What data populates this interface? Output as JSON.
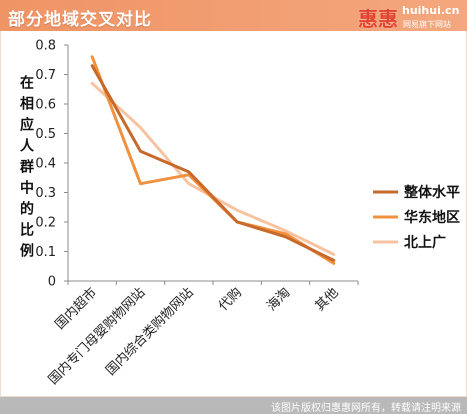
{
  "header": {
    "logo": {
      "brand": "惠惠",
      "site": "huihui.cn",
      "tagline": "网易旗下网站"
    }
  },
  "chart_data": {
    "type": "line",
    "title": "部分地域交叉对比",
    "xlabel": "",
    "ylabel": "在相应人群中的比例",
    "categories": [
      "国内超市",
      "国内专门母婴购物网站",
      "国内综合类购物网站",
      "代购",
      "海淘",
      "其他"
    ],
    "ylim": [
      0,
      0.8
    ],
    "yticks": [
      "0",
      "0.1",
      "0.2",
      "0.3",
      "0.4",
      "0.5",
      "0.6",
      "0.7",
      "0.8"
    ],
    "grid": false,
    "legend": "right",
    "series": [
      {
        "name": "整体水平",
        "color": "#c8692c",
        "values": [
          0.73,
          0.44,
          0.37,
          0.2,
          0.15,
          0.07
        ]
      },
      {
        "name": "华东地区",
        "color": "#f0913e",
        "values": [
          0.76,
          0.33,
          0.36,
          0.2,
          0.16,
          0.06
        ]
      },
      {
        "name": "北上广",
        "color": "#f7c3a1",
        "values": [
          0.67,
          0.52,
          0.33,
          0.24,
          0.17,
          0.09
        ]
      }
    ]
  },
  "footer": {
    "copyright": "该图片版权归惠惠网所有，转载请注明来源"
  },
  "colors": {
    "header_bg": "#f09a6c",
    "footer_bg": "#b9b9b9",
    "axis": "#8c8c8c"
  }
}
